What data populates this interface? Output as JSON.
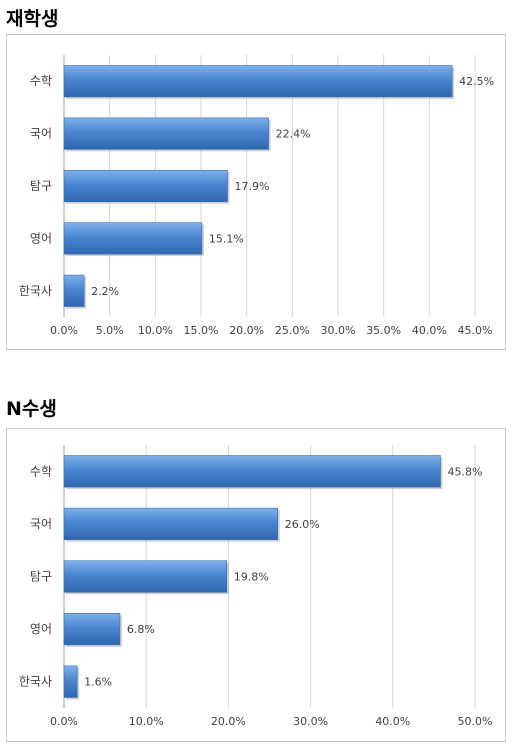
{
  "sections": [
    {
      "title": "재학생"
    },
    {
      "title": "N수생"
    }
  ],
  "chart_data": [
    {
      "type": "bar",
      "orientation": "horizontal",
      "title": "재학생",
      "categories": [
        "수학",
        "국어",
        "탐구",
        "영어",
        "한국사"
      ],
      "values": [
        42.5,
        22.4,
        17.9,
        15.1,
        2.2
      ],
      "value_labels": [
        "42.5%",
        "22.4%",
        "17.9%",
        "15.1%",
        "2.2%"
      ],
      "xlim": [
        0,
        45
      ],
      "xticks": [
        0,
        5,
        10,
        15,
        20,
        25,
        30,
        35,
        40,
        45
      ],
      "xtick_labels": [
        "0.0%",
        "5.0%",
        "10.0%",
        "15.0%",
        "20.0%",
        "25.0%",
        "30.0%",
        "35.0%",
        "40.0%",
        "45.0%"
      ],
      "grid": true,
      "bar_color": "#4a86cf"
    },
    {
      "type": "bar",
      "orientation": "horizontal",
      "title": "N수생",
      "categories": [
        "수학",
        "국어",
        "탐구",
        "영어",
        "한국사"
      ],
      "values": [
        45.8,
        26.0,
        19.8,
        6.8,
        1.6
      ],
      "value_labels": [
        "45.8%",
        "26.0%",
        "19.8%",
        "6.8%",
        "1.6%"
      ],
      "xlim": [
        0,
        50
      ],
      "xticks": [
        0,
        10,
        20,
        30,
        40,
        50
      ],
      "xtick_labels": [
        "0.0%",
        "10.0%",
        "20.0%",
        "30.0%",
        "40.0%",
        "50.0%"
      ],
      "grid": true,
      "bar_color": "#4a86cf"
    }
  ]
}
